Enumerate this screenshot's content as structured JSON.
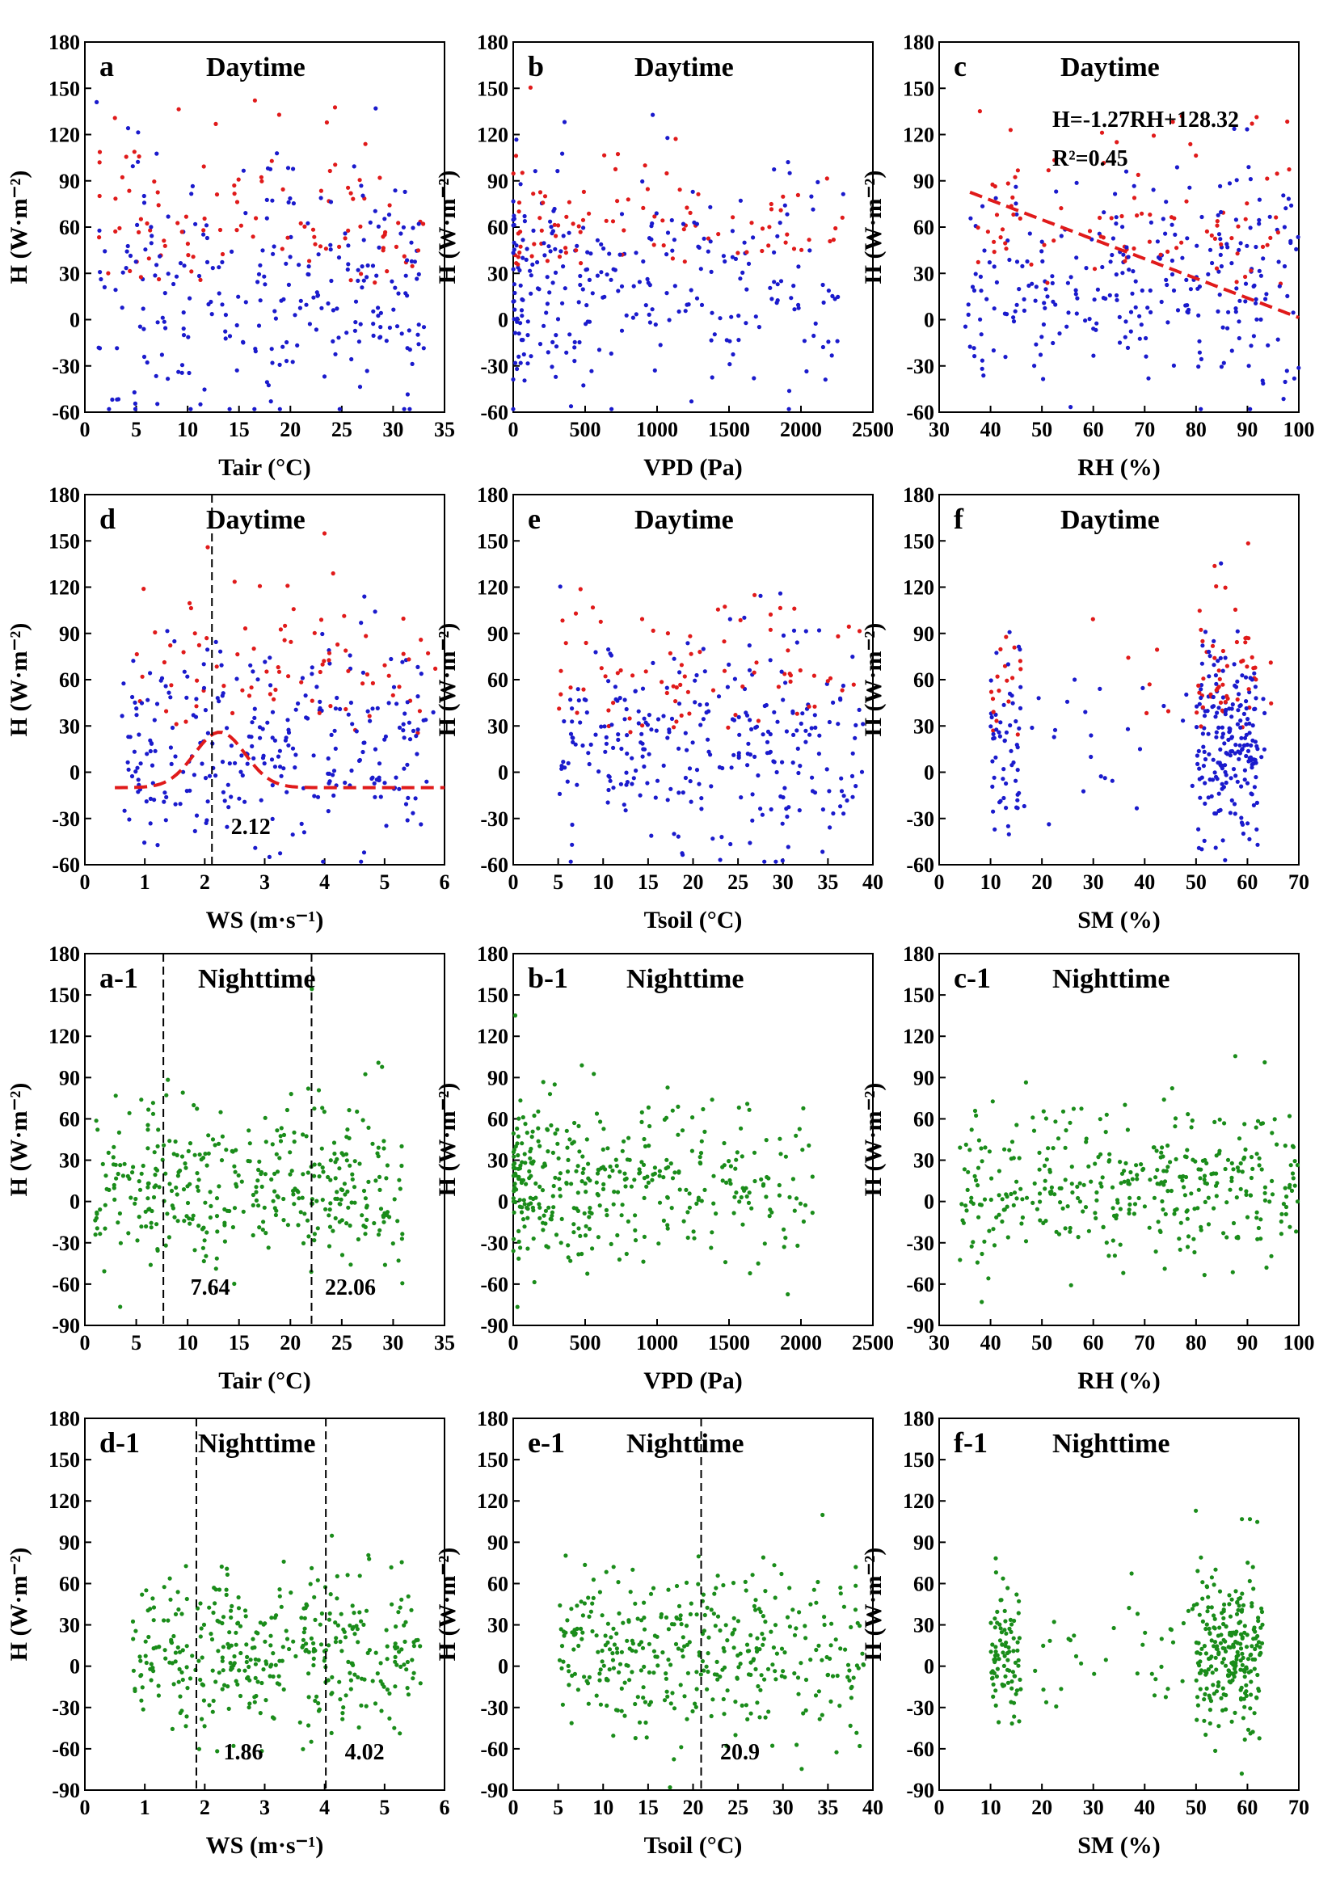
{
  "figure": {
    "ylabel": "H (W·m⁻²)",
    "colors": {
      "day_main": "#1a1acc",
      "day_highlight": "#e01a1a",
      "night": "#1a8c1a",
      "fit": "#e01a1a"
    }
  },
  "chart_data": [
    {
      "id": "a",
      "type": "scatter",
      "panel_label": "a",
      "title": "Daytime",
      "xlabel": "Tair (°C)",
      "xlim": [
        0,
        35
      ],
      "xticks": [
        0,
        5,
        10,
        15,
        20,
        25,
        30,
        35
      ],
      "ylim": [
        -60,
        180
      ],
      "yticks": [
        -60,
        -30,
        0,
        30,
        60,
        90,
        120,
        150,
        180
      ],
      "colors": [
        "#1a1acc",
        "#e01a1a"
      ],
      "x_range": [
        1,
        33
      ],
      "y_center": 15,
      "y_spread": 40,
      "n_points": 360,
      "red_fraction": 0.25,
      "vlines": [],
      "vline_labels": [],
      "fit": null,
      "equation": []
    },
    {
      "id": "b",
      "type": "scatter",
      "panel_label": "b",
      "title": "Daytime",
      "xlabel": "VPD (Pa)",
      "xlim": [
        0,
        2500
      ],
      "xticks": [
        0,
        500,
        1000,
        1500,
        2000,
        2500
      ],
      "ylim": [
        -60,
        180
      ],
      "yticks": [
        -60,
        -30,
        0,
        30,
        60,
        90,
        120,
        150,
        180
      ],
      "colors": [
        "#1a1acc",
        "#e01a1a"
      ],
      "x_range": [
        0,
        2300
      ],
      "y_center": 20,
      "y_spread": 35,
      "n_points": 360,
      "red_fraction": 0.25,
      "vlines": [],
      "vline_labels": [],
      "fit": null,
      "equation": []
    },
    {
      "id": "c",
      "type": "scatter",
      "panel_label": "c",
      "title": "Daytime",
      "xlabel": "RH (%)",
      "xlim": [
        30,
        100
      ],
      "xticks": [
        30,
        40,
        50,
        60,
        70,
        80,
        90,
        100
      ],
      "ylim": [
        -60,
        180
      ],
      "yticks": [
        -60,
        -30,
        0,
        30,
        60,
        90,
        120,
        150,
        180
      ],
      "colors": [
        "#1a1acc",
        "#e01a1a"
      ],
      "x_range": [
        35,
        100
      ],
      "y_center": 20,
      "y_spread": 35,
      "n_points": 360,
      "red_fraction": 0.25,
      "vlines": [],
      "vline_labels": [],
      "fit": {
        "kind": "linear",
        "slope": -1.27,
        "intercept": 128.32,
        "x_from": 36,
        "x_to": 100
      },
      "equation": [
        "H=-1.27RH+128.32",
        "R²=0.45"
      ]
    },
    {
      "id": "d",
      "type": "scatter",
      "panel_label": "d",
      "title": "Daytime",
      "xlabel": "WS (m·s⁻¹)",
      "xlim": [
        0,
        6
      ],
      "xticks": [
        0,
        1,
        2,
        3,
        4,
        5,
        6
      ],
      "ylim": [
        -60,
        180
      ],
      "yticks": [
        -60,
        -30,
        0,
        30,
        60,
        90,
        120,
        150,
        180
      ],
      "colors": [
        "#1a1acc",
        "#e01a1a"
      ],
      "x_range": [
        0.6,
        5.9
      ],
      "y_center": 15,
      "y_spread": 35,
      "n_points": 360,
      "red_fraction": 0.25,
      "vlines": [
        2.12
      ],
      "vline_labels": [
        "2.12"
      ],
      "fit": {
        "kind": "gauss",
        "base": -10,
        "amp": 36,
        "center": 2.25,
        "width": 0.6,
        "x_from": 0.5,
        "x_to": 6
      },
      "equation": []
    },
    {
      "id": "e",
      "type": "scatter",
      "panel_label": "e",
      "title": "Daytime",
      "xlabel": "Tsoil (°C)",
      "xlim": [
        0,
        40
      ],
      "xticks": [
        0,
        5,
        10,
        15,
        20,
        25,
        30,
        35,
        40
      ],
      "ylim": [
        -60,
        180
      ],
      "yticks": [
        -60,
        -30,
        0,
        30,
        60,
        90,
        120,
        150,
        180
      ],
      "colors": [
        "#1a1acc",
        "#e01a1a"
      ],
      "x_range": [
        5,
        39
      ],
      "y_center": 15,
      "y_spread": 35,
      "n_points": 360,
      "red_fraction": 0.2,
      "vlines": [],
      "vline_labels": [],
      "fit": null,
      "equation": []
    },
    {
      "id": "f",
      "type": "scatter",
      "panel_label": "f",
      "title": "Daytime",
      "xlabel": "SM (%)",
      "xlim": [
        0,
        70
      ],
      "xticks": [
        0,
        10,
        20,
        30,
        40,
        50,
        60,
        70
      ],
      "ylim": [
        -60,
        180
      ],
      "yticks": [
        -60,
        -30,
        0,
        30,
        60,
        90,
        120,
        150,
        180
      ],
      "colors": [
        "#1a1acc",
        "#e01a1a"
      ],
      "x_range": [
        10,
        66
      ],
      "x_clusters": [
        [
          10,
          16,
          0.2
        ],
        [
          50,
          62,
          0.65
        ]
      ],
      "y_center": 15,
      "y_spread": 30,
      "n_points": 360,
      "red_fraction": 0.2,
      "vlines": [],
      "vline_labels": [],
      "fit": null,
      "equation": []
    },
    {
      "id": "a-1",
      "type": "scatter",
      "panel_label": "a-1",
      "title": "Nighttime",
      "xlabel": "Tair (°C)",
      "xlim": [
        0,
        35
      ],
      "xticks": [
        0,
        5,
        10,
        15,
        20,
        25,
        30,
        35
      ],
      "ylim": [
        -90,
        180
      ],
      "yticks": [
        -90,
        -60,
        -30,
        0,
        30,
        60,
        90,
        120,
        150,
        180
      ],
      "colors": [
        "#1a8c1a"
      ],
      "x_range": [
        1,
        31
      ],
      "y_center": 8,
      "y_spread": 28,
      "n_points": 380,
      "red_fraction": 0,
      "vlines": [
        7.64,
        22.06
      ],
      "vline_labels": [
        "7.64",
        "22.06"
      ],
      "fit": null,
      "equation": []
    },
    {
      "id": "b-1",
      "type": "scatter",
      "panel_label": "b-1",
      "title": "Nighttime",
      "xlabel": "VPD (Pa)",
      "xlim": [
        0,
        2500
      ],
      "xticks": [
        0,
        500,
        1000,
        1500,
        2000,
        2500
      ],
      "ylim": [
        -90,
        180
      ],
      "yticks": [
        -90,
        -60,
        -30,
        0,
        30,
        60,
        90,
        120,
        150,
        180
      ],
      "colors": [
        "#1a8c1a"
      ],
      "x_range": [
        0,
        2100
      ],
      "y_center": 8,
      "y_spread": 28,
      "n_points": 380,
      "red_fraction": 0,
      "vlines": [],
      "vline_labels": [],
      "fit": null,
      "equation": []
    },
    {
      "id": "c-1",
      "type": "scatter",
      "panel_label": "c-1",
      "title": "Nighttime",
      "xlabel": "RH (%)",
      "xlim": [
        30,
        100
      ],
      "xticks": [
        30,
        40,
        50,
        60,
        70,
        80,
        90,
        100
      ],
      "ylim": [
        -90,
        180
      ],
      "yticks": [
        -90,
        -60,
        -30,
        0,
        30,
        60,
        90,
        120,
        150,
        180
      ],
      "colors": [
        "#1a8c1a"
      ],
      "x_range": [
        34,
        100
      ],
      "y_center": 8,
      "y_spread": 28,
      "n_points": 380,
      "red_fraction": 0,
      "vlines": [],
      "vline_labels": [],
      "fit": null,
      "equation": []
    },
    {
      "id": "d-1",
      "type": "scatter",
      "panel_label": "d-1",
      "title": "Nighttime",
      "xlabel": "WS (m·s⁻¹)",
      "xlim": [
        0,
        6
      ],
      "xticks": [
        0,
        1,
        2,
        3,
        4,
        5,
        6
      ],
      "ylim": [
        -90,
        180
      ],
      "yticks": [
        -90,
        -60,
        -30,
        0,
        30,
        60,
        90,
        120,
        150,
        180
      ],
      "colors": [
        "#1a8c1a"
      ],
      "x_range": [
        0.8,
        5.6
      ],
      "y_center": 8,
      "y_spread": 28,
      "n_points": 380,
      "red_fraction": 0,
      "vlines": [
        1.86,
        4.02
      ],
      "vline_labels": [
        "1.86",
        "4.02"
      ],
      "fit": null,
      "equation": []
    },
    {
      "id": "e-1",
      "type": "scatter",
      "panel_label": "e-1",
      "title": "Nighttime",
      "xlabel": "Tsoil (°C)",
      "xlim": [
        0,
        40
      ],
      "xticks": [
        0,
        5,
        10,
        15,
        20,
        25,
        30,
        35,
        40
      ],
      "ylim": [
        -90,
        180
      ],
      "yticks": [
        -90,
        -60,
        -30,
        0,
        30,
        60,
        90,
        120,
        150,
        180
      ],
      "colors": [
        "#1a8c1a"
      ],
      "x_range": [
        5,
        39
      ],
      "y_center": 8,
      "y_spread": 28,
      "n_points": 380,
      "red_fraction": 0,
      "vlines": [
        20.9
      ],
      "vline_labels": [
        "20.9"
      ],
      "fit": null,
      "equation": []
    },
    {
      "id": "f-1",
      "type": "scatter",
      "panel_label": "f-1",
      "title": "Nighttime",
      "xlabel": "SM (%)",
      "xlim": [
        0,
        70
      ],
      "xticks": [
        0,
        10,
        20,
        30,
        40,
        50,
        60,
        70
      ],
      "ylim": [
        -90,
        180
      ],
      "yticks": [
        -90,
        -60,
        -30,
        0,
        30,
        60,
        90,
        120,
        150,
        180
      ],
      "colors": [
        "#1a8c1a"
      ],
      "x_range": [
        10,
        65
      ],
      "x_clusters": [
        [
          10,
          16,
          0.2
        ],
        [
          50,
          63,
          0.65
        ]
      ],
      "y_center": 8,
      "y_spread": 28,
      "n_points": 380,
      "red_fraction": 0,
      "vlines": [],
      "vline_labels": [],
      "fit": null,
      "equation": []
    }
  ]
}
